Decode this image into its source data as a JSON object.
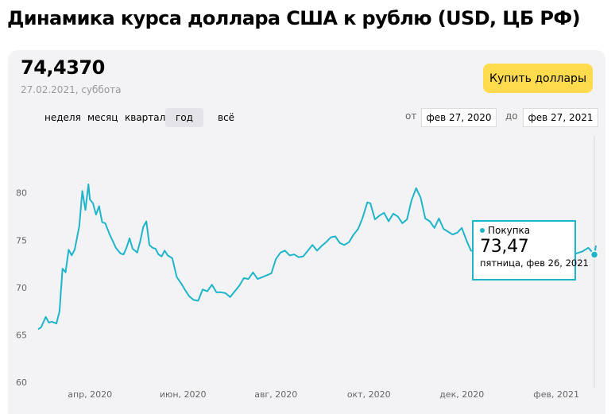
{
  "title": "Динамика курса доллара США к рублю (USD, ЦБ РФ)",
  "rate": {
    "value": "74,4370",
    "date": "27.02.2021, суббота"
  },
  "buy_button_label": "Купить доллары",
  "periods": [
    {
      "label": "неделя",
      "active": false
    },
    {
      "label": "месяц",
      "active": false
    },
    {
      "label": "квартал",
      "active": false
    },
    {
      "label": "год",
      "active": true
    },
    {
      "label": "всё",
      "active": false
    }
  ],
  "range": {
    "from_label": "от",
    "from_value": "фев 27, 2020",
    "to_label": "до",
    "to_value": "фев 27, 2021"
  },
  "tooltip": {
    "series": "Покупка",
    "value": "73,47",
    "date": "пятница, фев 26, 2021"
  },
  "colors": {
    "line": "#1fb5c9",
    "button": "#ffdb4d",
    "card": "#f3f3f5"
  },
  "chart_data": {
    "type": "line",
    "title": "",
    "series": [
      {
        "name": "Покупка",
        "x": [
          "2020-02-27",
          "2020-02-29",
          "2020-03-03",
          "2020-03-05",
          "2020-03-07",
          "2020-03-10",
          "2020-03-12",
          "2020-03-14",
          "2020-03-16",
          "2020-03-18",
          "2020-03-20",
          "2020-03-22",
          "2020-03-25",
          "2020-03-27",
          "2020-03-29",
          "2020-03-31",
          "2020-04-01",
          "2020-04-03",
          "2020-04-05",
          "2020-04-07",
          "2020-04-09",
          "2020-04-11",
          "2020-04-14",
          "2020-04-16",
          "2020-04-18",
          "2020-04-21",
          "2020-04-23",
          "2020-04-25",
          "2020-04-27",
          "2020-04-29",
          "2020-05-02",
          "2020-05-04",
          "2020-05-06",
          "2020-05-08",
          "2020-05-10",
          "2020-05-12",
          "2020-05-14",
          "2020-05-16",
          "2020-05-18",
          "2020-05-20",
          "2020-05-22",
          "2020-05-25",
          "2020-05-28",
          "2020-05-31",
          "2020-06-03",
          "2020-06-05",
          "2020-06-08",
          "2020-06-11",
          "2020-06-14",
          "2020-06-17",
          "2020-06-20",
          "2020-06-23",
          "2020-06-26",
          "2020-06-29",
          "2020-07-02",
          "2020-07-05",
          "2020-07-08",
          "2020-07-11",
          "2020-07-14",
          "2020-07-17",
          "2020-07-20",
          "2020-07-23",
          "2020-07-26",
          "2020-07-29",
          "2020-08-01",
          "2020-08-04",
          "2020-08-07",
          "2020-08-10",
          "2020-08-13",
          "2020-08-16",
          "2020-08-19",
          "2020-08-22",
          "2020-08-25",
          "2020-08-28",
          "2020-08-31",
          "2020-09-03",
          "2020-09-06",
          "2020-09-09",
          "2020-09-12",
          "2020-09-15",
          "2020-09-18",
          "2020-09-21",
          "2020-09-24",
          "2020-09-27",
          "2020-09-30",
          "2020-10-02",
          "2020-10-05",
          "2020-10-08",
          "2020-10-11",
          "2020-10-14",
          "2020-10-17",
          "2020-10-20",
          "2020-10-23",
          "2020-10-26",
          "2020-10-29",
          "2020-11-01",
          "2020-11-04",
          "2020-11-07",
          "2020-11-10",
          "2020-11-13",
          "2020-11-16",
          "2020-11-19",
          "2020-11-22",
          "2020-11-25",
          "2020-11-28",
          "2020-12-01",
          "2020-12-04",
          "2020-12-07",
          "2020-12-10",
          "2020-12-13",
          "2020-12-16",
          "2020-12-19",
          "2020-12-22",
          "2020-12-25",
          "2020-12-28",
          "2021-01-01",
          "2021-01-05",
          "2021-01-09",
          "2021-01-13",
          "2021-01-17",
          "2021-01-21",
          "2021-01-25",
          "2021-01-29",
          "2021-02-02",
          "2021-02-06",
          "2021-02-10",
          "2021-02-14",
          "2021-02-18",
          "2021-02-22",
          "2021-02-26",
          "2021-02-27"
        ],
        "values": [
          65.6,
          65.8,
          66.9,
          66.3,
          66.4,
          66.2,
          67.5,
          72.0,
          71.6,
          74.0,
          73.4,
          74.0,
          76.5,
          80.2,
          78.2,
          80.9,
          79.3,
          78.9,
          77.7,
          78.6,
          76.9,
          76.8,
          75.6,
          74.9,
          74.2,
          73.6,
          73.5,
          74.2,
          75.2,
          74.1,
          73.7,
          74.9,
          76.4,
          77.0,
          74.5,
          74.2,
          74.1,
          73.5,
          73.3,
          73.9,
          73.4,
          73.1,
          71.1,
          70.4,
          69.6,
          69.1,
          68.7,
          68.6,
          69.8,
          69.6,
          70.3,
          69.5,
          69.5,
          69.4,
          69.0,
          69.6,
          70.2,
          71.0,
          70.9,
          71.6,
          70.9,
          71.1,
          71.3,
          71.5,
          73.0,
          73.7,
          73.9,
          73.4,
          73.5,
          73.2,
          73.3,
          73.9,
          74.5,
          73.9,
          74.4,
          74.8,
          75.3,
          75.4,
          74.7,
          74.5,
          74.8,
          75.6,
          76.2,
          77.4,
          79.0,
          78.9,
          77.2,
          77.6,
          77.9,
          77.0,
          77.8,
          77.5,
          76.8,
          77.2,
          79.2,
          80.5,
          79.5,
          77.3,
          77.0,
          76.3,
          77.3,
          76.2,
          75.9,
          75.6,
          75.8,
          76.3,
          75.0,
          73.9,
          73.8,
          74.1,
          73.8,
          73.1,
          73.4,
          74.3,
          75.2,
          73.4,
          73.6,
          73.6,
          74.2,
          75.0,
          75.2,
          75.3,
          75.5,
          76.0,
          74.1,
          73.9,
          73.6,
          73.8,
          74.2,
          73.47,
          74.44
        ]
      }
    ],
    "xlim": [
      "2020-02-27",
      "2021-02-27"
    ],
    "ylim": [
      60,
      83
    ],
    "y_ticks": [
      60,
      65,
      70,
      75,
      80
    ],
    "y_tick_labels": [
      "60",
      "65",
      "70",
      "75",
      "80"
    ],
    "x_ticks": [
      {
        "date": "2020-04-01",
        "label": "апр, 2020"
      },
      {
        "date": "2020-06-01",
        "label": "июн, 2020"
      },
      {
        "date": "2020-08-01",
        "label": "авг, 2020"
      },
      {
        "date": "2020-10-01",
        "label": "окт, 2020"
      },
      {
        "date": "2020-12-01",
        "label": "дек, 2020"
      },
      {
        "date": "2021-02-01",
        "label": "фев, 2021"
      }
    ],
    "highlight": {
      "date": "2021-02-26",
      "value": 73.47
    },
    "grid": false,
    "legend": "none"
  }
}
